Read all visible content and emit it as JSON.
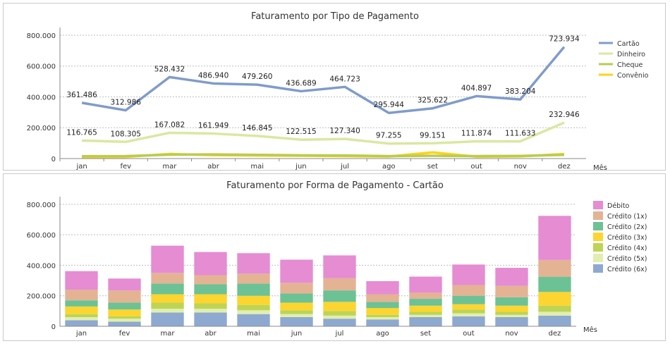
{
  "chart_data": [
    {
      "type": "line",
      "title": "Faturamento por Tipo de Pagamento",
      "xlabel": "Mês",
      "ylabel": "",
      "categories": [
        "jan",
        "fev",
        "mar",
        "abr",
        "mai",
        "jun",
        "jul",
        "ago",
        "set",
        "out",
        "nov",
        "dez"
      ],
      "y_ticks": [
        "0",
        "200.000",
        "400.000",
        "600.000",
        "800.000"
      ],
      "ylim": [
        0,
        850000
      ],
      "grid": true,
      "legend_position": "right",
      "series": [
        {
          "name": "Cartão",
          "color": "#7f9cc9",
          "values": [
            361486,
            312986,
            528432,
            486940,
            479260,
            436689,
            464723,
            295944,
            325622,
            404897,
            383204,
            723934
          ],
          "labels": [
            "361.486",
            "312.986",
            "528.432",
            "486.940",
            "479.260",
            "436.689",
            "464.723",
            "295.944",
            "325.622",
            "404.897",
            "383.204",
            "723.934"
          ]
        },
        {
          "name": "Dinheiro",
          "color": "#d9e8a0",
          "values": [
            116765,
            108305,
            167082,
            161949,
            146845,
            122515,
            127340,
            97255,
            99151,
            111874,
            111633,
            232946
          ],
          "labels": [
            "116.765",
            "108.305",
            "167.082",
            "161.949",
            "146.845",
            "122.515",
            "127.340",
            "97.255",
            "99.151",
            "111.874",
            "111.633",
            "232.946"
          ]
        },
        {
          "name": "Cheque",
          "color": "#b9cc4e",
          "values": [
            15000,
            16000,
            25000,
            27000,
            24000,
            21000,
            20000,
            16000,
            18000,
            16000,
            17000,
            24000
          ]
        },
        {
          "name": "Convênio",
          "color": "#ffd21a",
          "values": [
            10000,
            11000,
            30000,
            22000,
            20000,
            18000,
            16000,
            13000,
            40000,
            12000,
            14000,
            30000
          ]
        }
      ]
    },
    {
      "type": "bar",
      "stacked": true,
      "title": "Faturamento por Forma de Pagamento - Cartão",
      "xlabel": "Mês",
      "ylabel": "",
      "categories": [
        "jan",
        "fev",
        "mar",
        "abr",
        "mai",
        "jun",
        "jul",
        "ago",
        "set",
        "out",
        "nov",
        "dez"
      ],
      "y_ticks": [
        "0",
        "200.000",
        "400.000",
        "600.000",
        "800.000"
      ],
      "ylim": [
        0,
        850000
      ],
      "grid": true,
      "legend_position": "right",
      "series": [
        {
          "name": "Crédito (6x)",
          "color": "#8ea9d0",
          "values": [
            40000,
            30000,
            90000,
            90000,
            80000,
            60000,
            50000,
            45000,
            60000,
            65000,
            60000,
            70000
          ]
        },
        {
          "name": "Crédito (5x)",
          "color": "#e2eeb0",
          "values": [
            20000,
            20000,
            25000,
            25000,
            25000,
            20000,
            20000,
            15000,
            15000,
            20000,
            15000,
            25000
          ]
        },
        {
          "name": "Crédito (4x)",
          "color": "#bdd455",
          "values": [
            20000,
            15000,
            40000,
            35000,
            35000,
            25000,
            30000,
            15000,
            20000,
            25000,
            20000,
            40000
          ]
        },
        {
          "name": "Crédito (3x)",
          "color": "#fcd530",
          "values": [
            50000,
            45000,
            55000,
            60000,
            60000,
            50000,
            60000,
            45000,
            40000,
            35000,
            40000,
            90000
          ]
        },
        {
          "name": "Crédito (2x)",
          "color": "#6cc294",
          "values": [
            40000,
            45000,
            70000,
            65000,
            80000,
            60000,
            75000,
            40000,
            45000,
            55000,
            55000,
            100000
          ]
        },
        {
          "name": "Crédito (1x)",
          "color": "#e3b394",
          "values": [
            70000,
            80000,
            70000,
            60000,
            65000,
            70000,
            80000,
            50000,
            40000,
            70000,
            75000,
            110000
          ]
        },
        {
          "name": "Débito",
          "color": "#e58cd3",
          "values": [
            121486,
            77986,
            178432,
            151940,
            134260,
            151689,
            149723,
            85944,
            105622,
            134897,
            118204,
            288934
          ]
        }
      ]
    }
  ]
}
